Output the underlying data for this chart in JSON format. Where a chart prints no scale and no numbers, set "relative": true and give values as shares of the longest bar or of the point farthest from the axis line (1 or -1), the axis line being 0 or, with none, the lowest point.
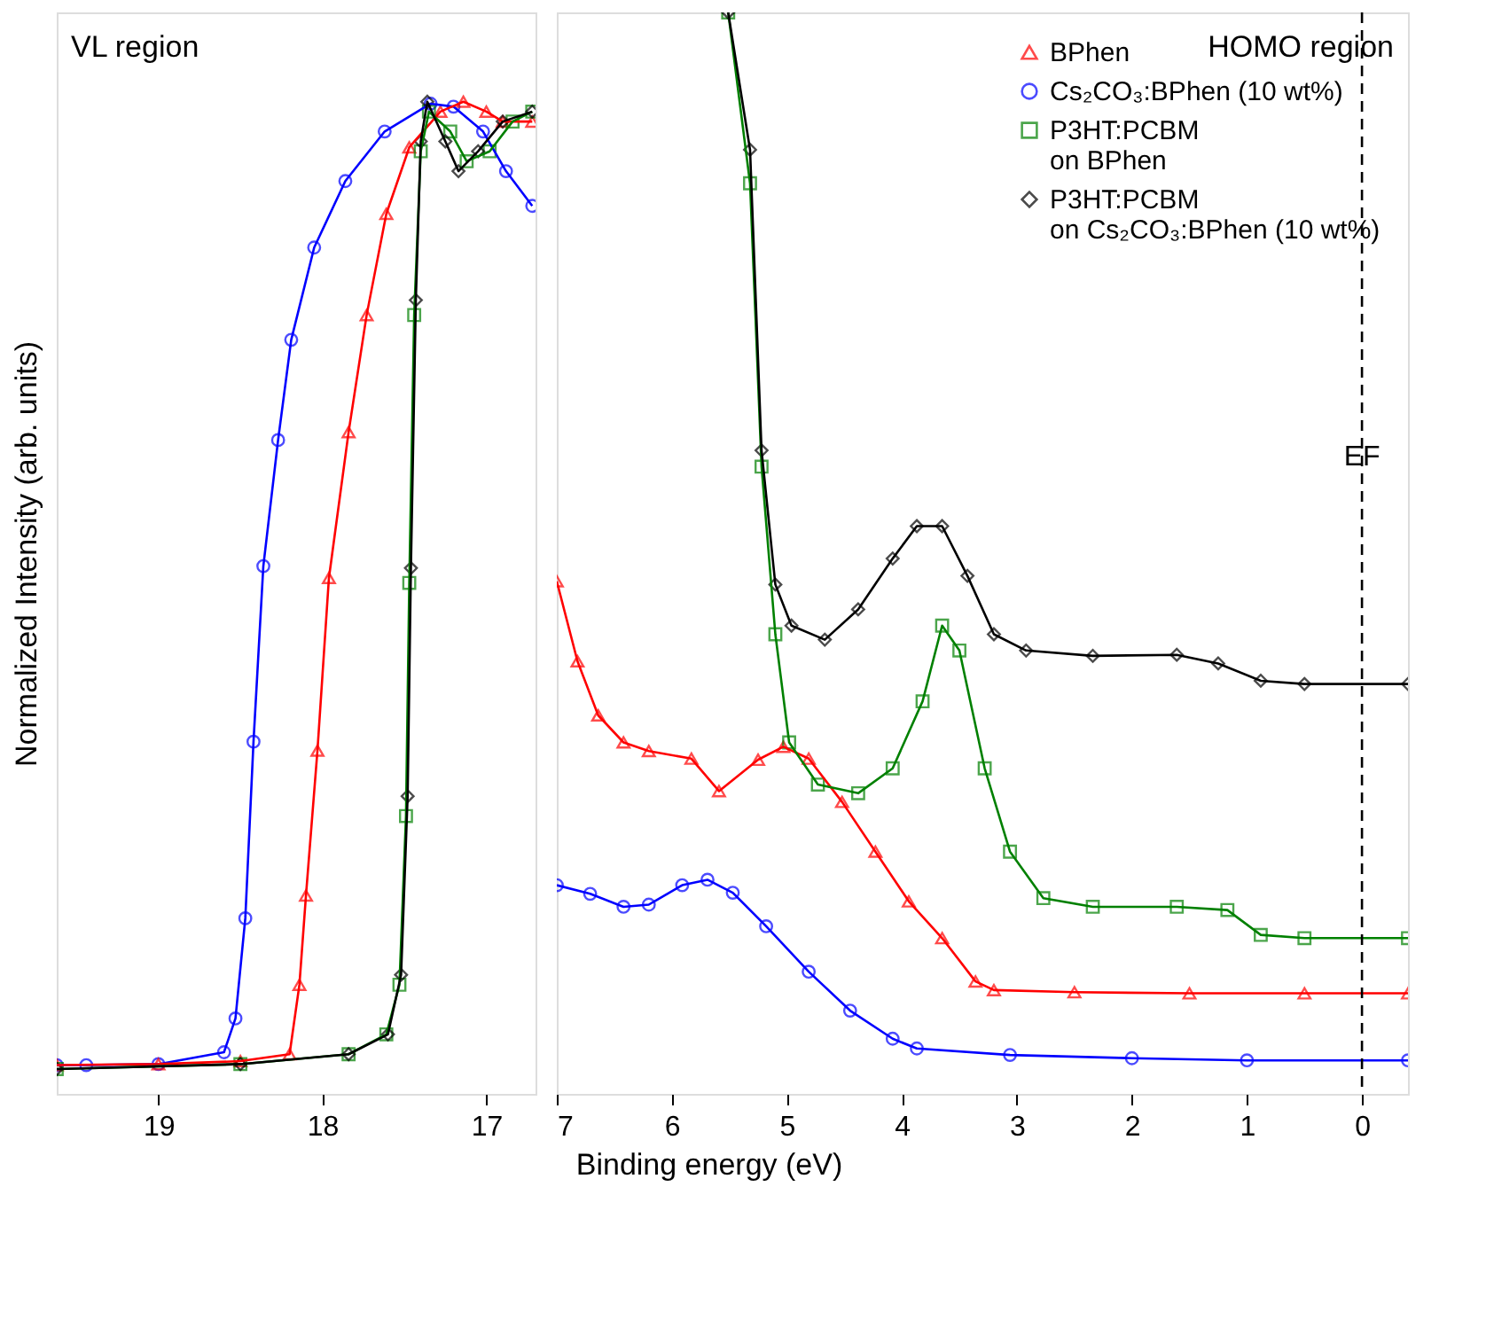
{
  "chart_data": [
    {
      "type": "line",
      "relative": true,
      "ylabel": "Normalized Intensity (arb. units)",
      "xlabel": "Binding energy (eV)",
      "xlim": [
        19.62,
        16.7
      ],
      "xticks": [
        19,
        18,
        17
      ],
      "tick_labels": "x",
      "grid": false,
      "legend": false,
      "annotations": [
        "VL region"
      ],
      "series": [
        {
          "color": "#0000ff",
          "marker": "circle",
          "x": [
            19.62,
            19.44,
            19.0,
            18.6,
            18.53,
            18.47,
            18.42,
            18.36,
            18.27,
            18.19,
            18.05,
            17.86,
            17.62,
            17.34,
            17.2,
            17.02,
            16.88,
            16.72
          ],
          "values": [
            0.029,
            0.029,
            0.03,
            0.042,
            0.076,
            0.177,
            0.355,
            0.532,
            0.659,
            0.76,
            0.853,
            0.92,
            0.97,
            0.998,
            0.995,
            0.97,
            0.93,
            0.895
          ]
        },
        {
          "color": "#ff0000",
          "marker": "triangle",
          "x": [
            19.62,
            19.0,
            18.5,
            18.2,
            18.14,
            18.1,
            18.03,
            17.96,
            17.84,
            17.73,
            17.61,
            17.47,
            17.28,
            17.14,
            17.0,
            16.9,
            16.72
          ],
          "values": [
            0.029,
            0.03,
            0.033,
            0.04,
            0.11,
            0.2,
            0.346,
            0.52,
            0.667,
            0.785,
            0.887,
            0.954,
            0.99,
            1.0,
            0.99,
            0.98,
            0.98
          ]
        },
        {
          "color": "#008000",
          "marker": "square",
          "x": [
            19.62,
            18.5,
            17.84,
            17.61,
            17.53,
            17.49,
            17.47,
            17.44,
            17.4,
            17.35,
            17.22,
            17.12,
            16.98,
            16.84,
            16.72
          ],
          "values": [
            0.025,
            0.03,
            0.04,
            0.06,
            0.11,
            0.28,
            0.515,
            0.785,
            0.95,
            0.99,
            0.97,
            0.94,
            0.95,
            0.98,
            0.99
          ]
        },
        {
          "color": "#000000",
          "marker": "diamond",
          "x": [
            19.62,
            18.5,
            17.84,
            17.6,
            17.52,
            17.48,
            17.46,
            17.43,
            17.4,
            17.36,
            17.25,
            17.17,
            17.05,
            16.9,
            16.72
          ],
          "values": [
            0.025,
            0.03,
            0.04,
            0.06,
            0.12,
            0.3,
            0.53,
            0.8,
            0.96,
            1.0,
            0.96,
            0.93,
            0.95,
            0.98,
            0.99
          ]
        }
      ]
    },
    {
      "type": "line",
      "relative": true,
      "xlim": [
        7,
        -0.4
      ],
      "xticks": [
        7,
        6,
        5,
        4,
        3,
        2,
        1,
        0
      ],
      "tick_labels": "x",
      "grid": false,
      "legend": "top right",
      "annotations": [
        "HOMO region"
      ],
      "ref_lines": [
        {
          "axis": "x",
          "value": 0,
          "label": "EF",
          "color": "#000000",
          "line_style": "dashed"
        }
      ],
      "series": [
        {
          "name": "BPhen",
          "color": "#ff0000",
          "marker": "triangle",
          "x": [
            7,
            6.82,
            6.64,
            6.42,
            6.2,
            5.83,
            5.59,
            5.25,
            5.03,
            4.81,
            4.52,
            4.23,
            3.94,
            3.65,
            3.36,
            3.2,
            2.5,
            1.5,
            0.5,
            -0.4
          ],
          "values": [
            0.474,
            0.4,
            0.35,
            0.325,
            0.317,
            0.31,
            0.28,
            0.309,
            0.321,
            0.31,
            0.27,
            0.224,
            0.178,
            0.144,
            0.104,
            0.096,
            0.094,
            0.093,
            0.093,
            0.093
          ]
        },
        {
          "name": "Cs₂CO₃:BPhen (10 wt%)",
          "color": "#0000ff",
          "marker": "circle",
          "x": [
            7,
            6.71,
            6.42,
            6.2,
            5.91,
            5.69,
            5.47,
            5.18,
            4.81,
            4.45,
            4.08,
            3.87,
            3.06,
            2.0,
            1.0,
            -0.4
          ],
          "values": [
            0.193,
            0.185,
            0.173,
            0.175,
            0.193,
            0.198,
            0.186,
            0.155,
            0.113,
            0.077,
            0.051,
            0.042,
            0.036,
            0.033,
            0.031,
            0.031
          ]
        },
        {
          "name": "P3HT:PCBM\non BPhen",
          "color": "#008000",
          "marker": "square",
          "x": [
            5.51,
            5.32,
            5.22,
            5.1,
            4.98,
            4.73,
            4.38,
            4.08,
            3.82,
            3.65,
            3.5,
            3.28,
            3.06,
            2.77,
            2.34,
            1.61,
            1.17,
            0.88,
            0.5,
            -0.4
          ],
          "values": [
            1.0,
            0.842,
            0.58,
            0.425,
            0.325,
            0.286,
            0.278,
            0.301,
            0.363,
            0.433,
            0.41,
            0.301,
            0.224,
            0.181,
            0.173,
            0.173,
            0.17,
            0.147,
            0.144,
            0.144
          ]
        },
        {
          "name": "P3HT:PCBM\non Cs₂CO₃:BPhen (10 wt%)",
          "color": "#000000",
          "marker": "diamond",
          "x": [
            5.51,
            5.32,
            5.22,
            5.1,
            4.96,
            4.67,
            4.38,
            4.08,
            3.87,
            3.65,
            3.43,
            3.2,
            2.92,
            2.34,
            1.61,
            1.25,
            0.88,
            0.5,
            -0.4
          ],
          "values": [
            1.0,
            0.873,
            0.595,
            0.471,
            0.433,
            0.42,
            0.448,
            0.495,
            0.525,
            0.525,
            0.479,
            0.425,
            0.41,
            0.405,
            0.406,
            0.398,
            0.382,
            0.379,
            0.379
          ]
        }
      ]
    }
  ]
}
